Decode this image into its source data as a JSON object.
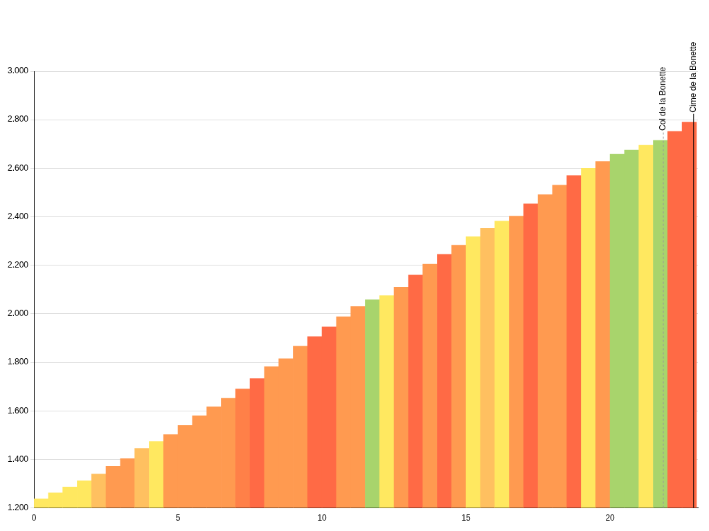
{
  "chart_data": {
    "type": "bar",
    "x": [
      0.25,
      0.75,
      1.25,
      1.75,
      2.25,
      2.75,
      3.25,
      3.75,
      4.25,
      4.75,
      5.25,
      5.75,
      6.25,
      6.75,
      7.25,
      7.75,
      8.25,
      8.75,
      9.25,
      9.75,
      10.25,
      10.75,
      11.25,
      11.75,
      12.25,
      12.75,
      13.25,
      13.75,
      14.25,
      14.75,
      15.25,
      15.75,
      16.25,
      16.75,
      17.25,
      17.75,
      18.25,
      18.75,
      19.25,
      19.75,
      20.25,
      20.75,
      21.25,
      21.75,
      22.25,
      22.75
    ],
    "values": [
      1237,
      1262,
      1286,
      1312,
      1340,
      1372,
      1403,
      1445,
      1474,
      1502,
      1540,
      1580,
      1617,
      1652,
      1690,
      1733,
      1782,
      1815,
      1867,
      1906,
      1946,
      1988,
      2030,
      2058,
      2075,
      2110,
      2160,
      2205,
      2245,
      2283,
      2318,
      2352,
      2382,
      2403,
      2453,
      2491,
      2530,
      2570,
      2600,
      2628,
      2658,
      2675,
      2695,
      2715,
      2752,
      2790
    ],
    "colors": [
      "#ffe860",
      "#ffe860",
      "#ffe860",
      "#ffe860",
      "#ffc060",
      "#ff9a50",
      "#ff9a50",
      "#ffc060",
      "#ffe860",
      "#ff9a50",
      "#ff9a50",
      "#ff9a50",
      "#ff9a50",
      "#ff9a50",
      "#ff8048",
      "#ff6a45",
      "#ff9a50",
      "#ff9a50",
      "#ff9a50",
      "#ff6a45",
      "#ff6a45",
      "#ff9a50",
      "#ff9a50",
      "#a8d46c",
      "#ffe860",
      "#ff9a50",
      "#ff6a45",
      "#ff9a50",
      "#ff6a45",
      "#ff9a50",
      "#ffe860",
      "#ffc060",
      "#ffe860",
      "#ff9a50",
      "#ff6a45",
      "#ff9a50",
      "#ff9a50",
      "#ff6a45",
      "#ffe860",
      "#ff9a50",
      "#a8d46c",
      "#a8d46c",
      "#ffe860",
      "#a8d46c",
      "#ff6a45",
      "#ff6a45"
    ],
    "xlim": [
      0,
      23.05
    ],
    "xticks": [
      0,
      5,
      10,
      15,
      20
    ],
    "ylim": [
      1200,
      3000
    ],
    "yticks": [
      {
        "value": 1200,
        "label": "1.200"
      },
      {
        "value": 1400,
        "label": "1.400"
      },
      {
        "value": 1600,
        "label": "1.600"
      },
      {
        "value": 1800,
        "label": "1.800"
      },
      {
        "value": 2000,
        "label": "2.000"
      },
      {
        "value": 2200,
        "label": "2.200"
      },
      {
        "value": 2400,
        "label": "2.400"
      },
      {
        "value": 2600,
        "label": "2.600"
      },
      {
        "value": 2800,
        "label": "2.800"
      },
      {
        "value": 3000,
        "label": "3.000"
      }
    ],
    "grid": "y",
    "legend": false,
    "ref_lines": [
      {
        "axis": "x",
        "value": 21.85,
        "label": "Col de la Bonette",
        "color": "#999999",
        "line_style": "dashed"
      },
      {
        "axis": "x",
        "value": 22.9,
        "label": "Cime de la Bonette",
        "color": "#000000",
        "line_style": "solid"
      }
    ]
  }
}
